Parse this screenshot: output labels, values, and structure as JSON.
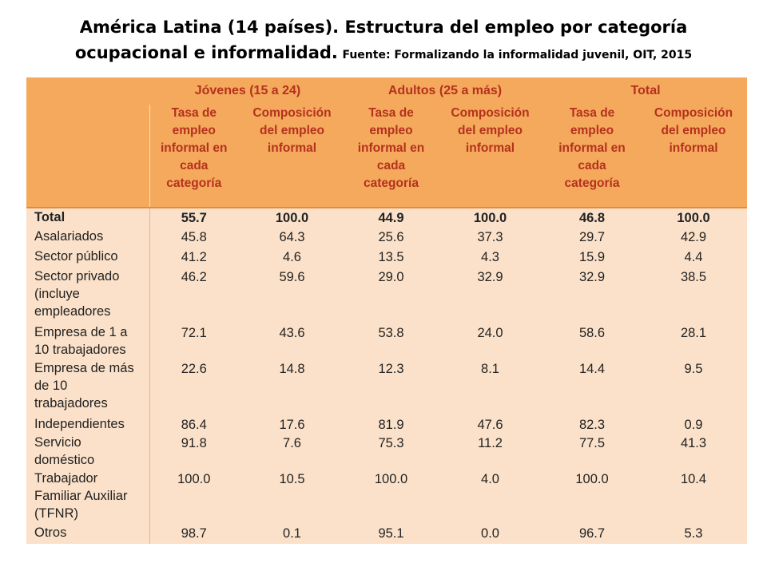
{
  "title": {
    "line1": "América Latina (14 países). Estructura del empleo por categoría",
    "line2": "ocupacional e informalidad.",
    "source": "Fuente: Formalizando la informalidad juvenil, OIT, 2015"
  },
  "chart_data": {
    "type": "table",
    "groups": [
      "Jóvenes (15 a 24)",
      "Adultos (25 a más)",
      "Total"
    ],
    "subheaders": {
      "rate": "Tasa de empleo informal en cada categoría",
      "composition": "Composición del empleo informal"
    },
    "columns": [
      "Jóvenes (15 a 24) - Tasa de empleo informal en cada categoría",
      "Jóvenes (15 a 24) - Composición del empleo informal",
      "Adultos (25 a más) - Tasa de empleo informal en cada categoría",
      "Adultos (25 a más) - Composición del empleo informal",
      "Total - Tasa de empleo informal en cada categoría",
      "Total - Composición del empleo informal"
    ],
    "rows": [
      {
        "label": "Total",
        "values": [
          "55.7",
          "100.0",
          "44.9",
          "100.0",
          "46.8",
          "100.0"
        ]
      },
      {
        "label": "Asalariados",
        "values": [
          "45.8",
          "64.3",
          "25.6",
          "37.3",
          "29.7",
          "42.9"
        ]
      },
      {
        "label": "Sector público",
        "values": [
          "41.2",
          "4.6",
          "13.5",
          "4.3",
          "15.9",
          "4.4"
        ]
      },
      {
        "label": "Sector privado (incluye empleadores",
        "values": [
          "46.2",
          "59.6",
          "29.0",
          "32.9",
          "32.9",
          "38.5"
        ]
      },
      {
        "label": "Empresa de 1 a 10 trabajadores",
        "values": [
          "72.1",
          "43.6",
          "53.8",
          "24.0",
          "58.6",
          "28.1"
        ]
      },
      {
        "label": "Empresa de más de 10 trabajadores",
        "values": [
          "22.6",
          "14.8",
          "12.3",
          "8.1",
          "14.4",
          "9.5"
        ]
      },
      {
        "label": "Independientes",
        "values": [
          "86.4",
          "17.6",
          "81.9",
          "47.6",
          "82.3",
          "0.9"
        ]
      },
      {
        "label": "Servicio doméstico",
        "values": [
          "91.8",
          "7.6",
          "75.3",
          "11.2",
          "77.5",
          "41.3"
        ]
      },
      {
        "label": "Trabajador Familiar Auxiliar (TFNR)",
        "values": [
          "100.0",
          "10.5",
          "100.0",
          "4.0",
          "100.0",
          "10.4"
        ]
      },
      {
        "label": "Otros",
        "values": [
          "98.7",
          "0.1",
          "95.1",
          "0.0",
          "96.7",
          "5.3"
        ]
      }
    ]
  },
  "colors": {
    "header_bg": "#f4a95c",
    "header_text": "#b5311e",
    "body_bg": "#fbe1c9",
    "rule": "#e8893a"
  }
}
